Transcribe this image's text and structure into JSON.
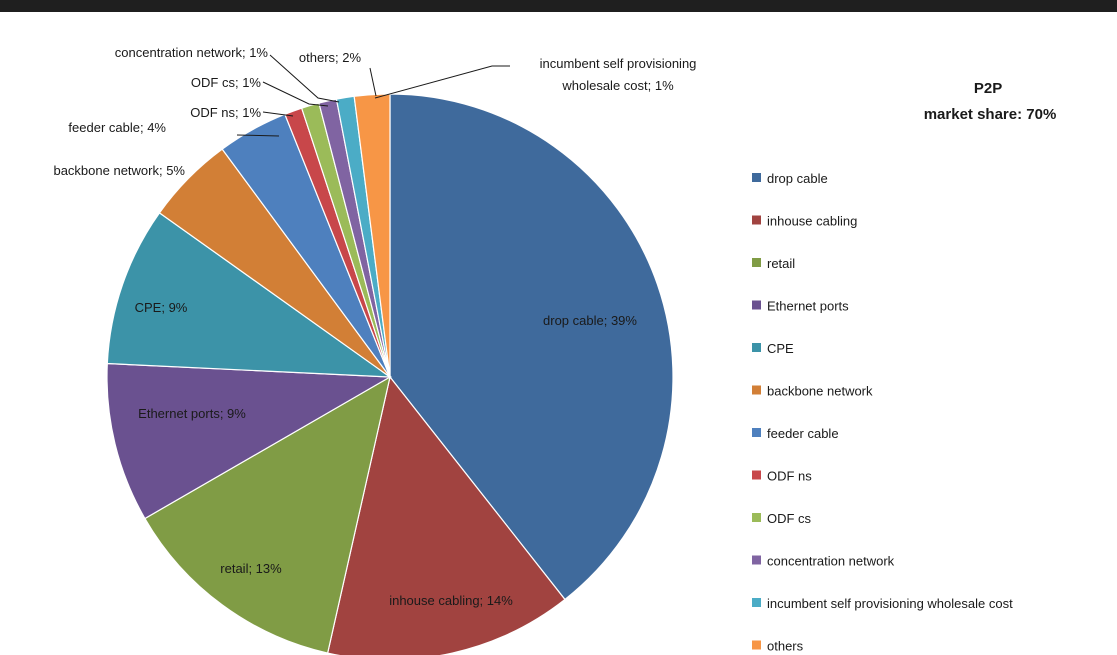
{
  "chart_data": {
    "type": "pie",
    "title": [
      "P2P",
      "market share: 70%"
    ],
    "categories": [
      "drop cable",
      "inhouse cabling",
      "retail",
      "Ethernet ports",
      "CPE",
      "backbone network",
      "feeder cable",
      "ODF ns",
      "ODF cs",
      "concentration network",
      "incumbent self provisioning wholesale cost",
      "others"
    ],
    "values": [
      39,
      14,
      13,
      9,
      9,
      5,
      4,
      1,
      1,
      1,
      1,
      2
    ],
    "data_labels": [
      "drop cable; 39%",
      "inhouse cabling; 14%",
      "retail; 13%",
      "Ethernet ports; 9%",
      "CPE; 9%",
      "backbone network;  5%",
      "feeder cable; 4%",
      "ODF ns;  1%",
      "ODF cs;  1%",
      "concentration network;  1%",
      [
        "incumbent self provisioning",
        "wholesale cost; 1%"
      ],
      "others;  2%"
    ],
    "colors": [
      "#3F6A9C",
      "#A14340",
      "#809C45",
      "#6A5190",
      "#3C93A8",
      "#D27F36",
      "#4E80BE",
      "#C8474A",
      "#9BBB59",
      "#8064A2",
      "#4BACC6",
      "#F79646"
    ],
    "legend": "right"
  }
}
